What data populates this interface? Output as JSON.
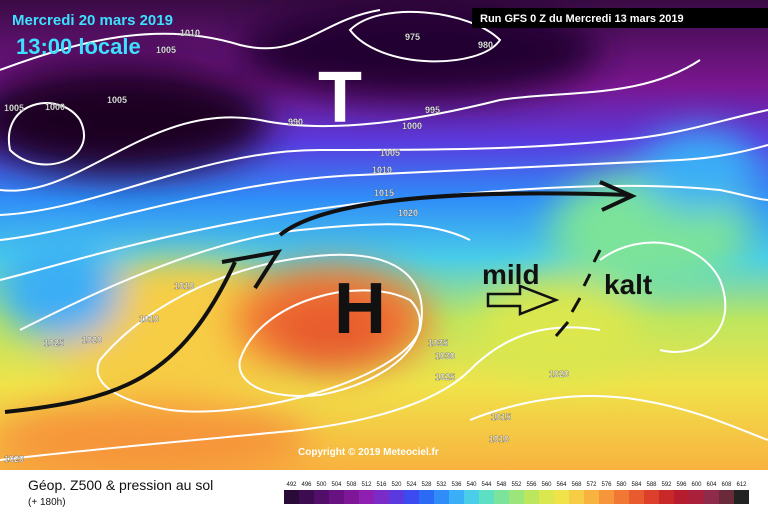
{
  "header": {
    "date": "Mercredi 20 mars 2019",
    "time": "13:00 locale",
    "run": "Run GFS 0 Z du Mercredi 13 mars 2019"
  },
  "isobar_labels": [
    "1010",
    "1005",
    "975",
    "980",
    "1005",
    "1000",
    "1005",
    "990",
    "995",
    "1000",
    "1005",
    "1010",
    "1015",
    "1020",
    "1010",
    "1010",
    "1025",
    "1020",
    "1035",
    "1030",
    "1025",
    "1020",
    "1015",
    "1010",
    "1020"
  ],
  "annotations": {
    "low": "T",
    "high": "H",
    "mild": "mild",
    "cold": "kalt"
  },
  "copyright": "Copyright © 2019 Meteociel.fr",
  "legend": {
    "title": "Géop. Z500 & pression au sol",
    "lead": "(+ 180h)",
    "ticks": [
      492,
      496,
      500,
      504,
      508,
      512,
      516,
      520,
      524,
      528,
      532,
      536,
      540,
      544,
      548,
      552,
      556,
      560,
      564,
      568,
      572,
      576,
      580,
      584,
      588,
      592,
      596,
      600,
      604,
      608,
      612
    ],
    "colors": [
      "#2a0a36",
      "#3d0c50",
      "#520f6a",
      "#681282",
      "#7e1698",
      "#8f1fb0",
      "#7a2bc8",
      "#5a3ade",
      "#3b4bef",
      "#2a6af5",
      "#2f8cf8",
      "#3aaef6",
      "#49cde8",
      "#5ddfc4",
      "#7ce39a",
      "#9be57a",
      "#bde65f",
      "#dbe74e",
      "#f0e34a",
      "#f7cd45",
      "#f8b23f",
      "#f6953a",
      "#f17734",
      "#e85b2e",
      "#dc3f2a",
      "#c92828",
      "#b51d2e",
      "#a8203c",
      "#8e2a4a",
      "#6a2a3a",
      "#222222"
    ]
  }
}
